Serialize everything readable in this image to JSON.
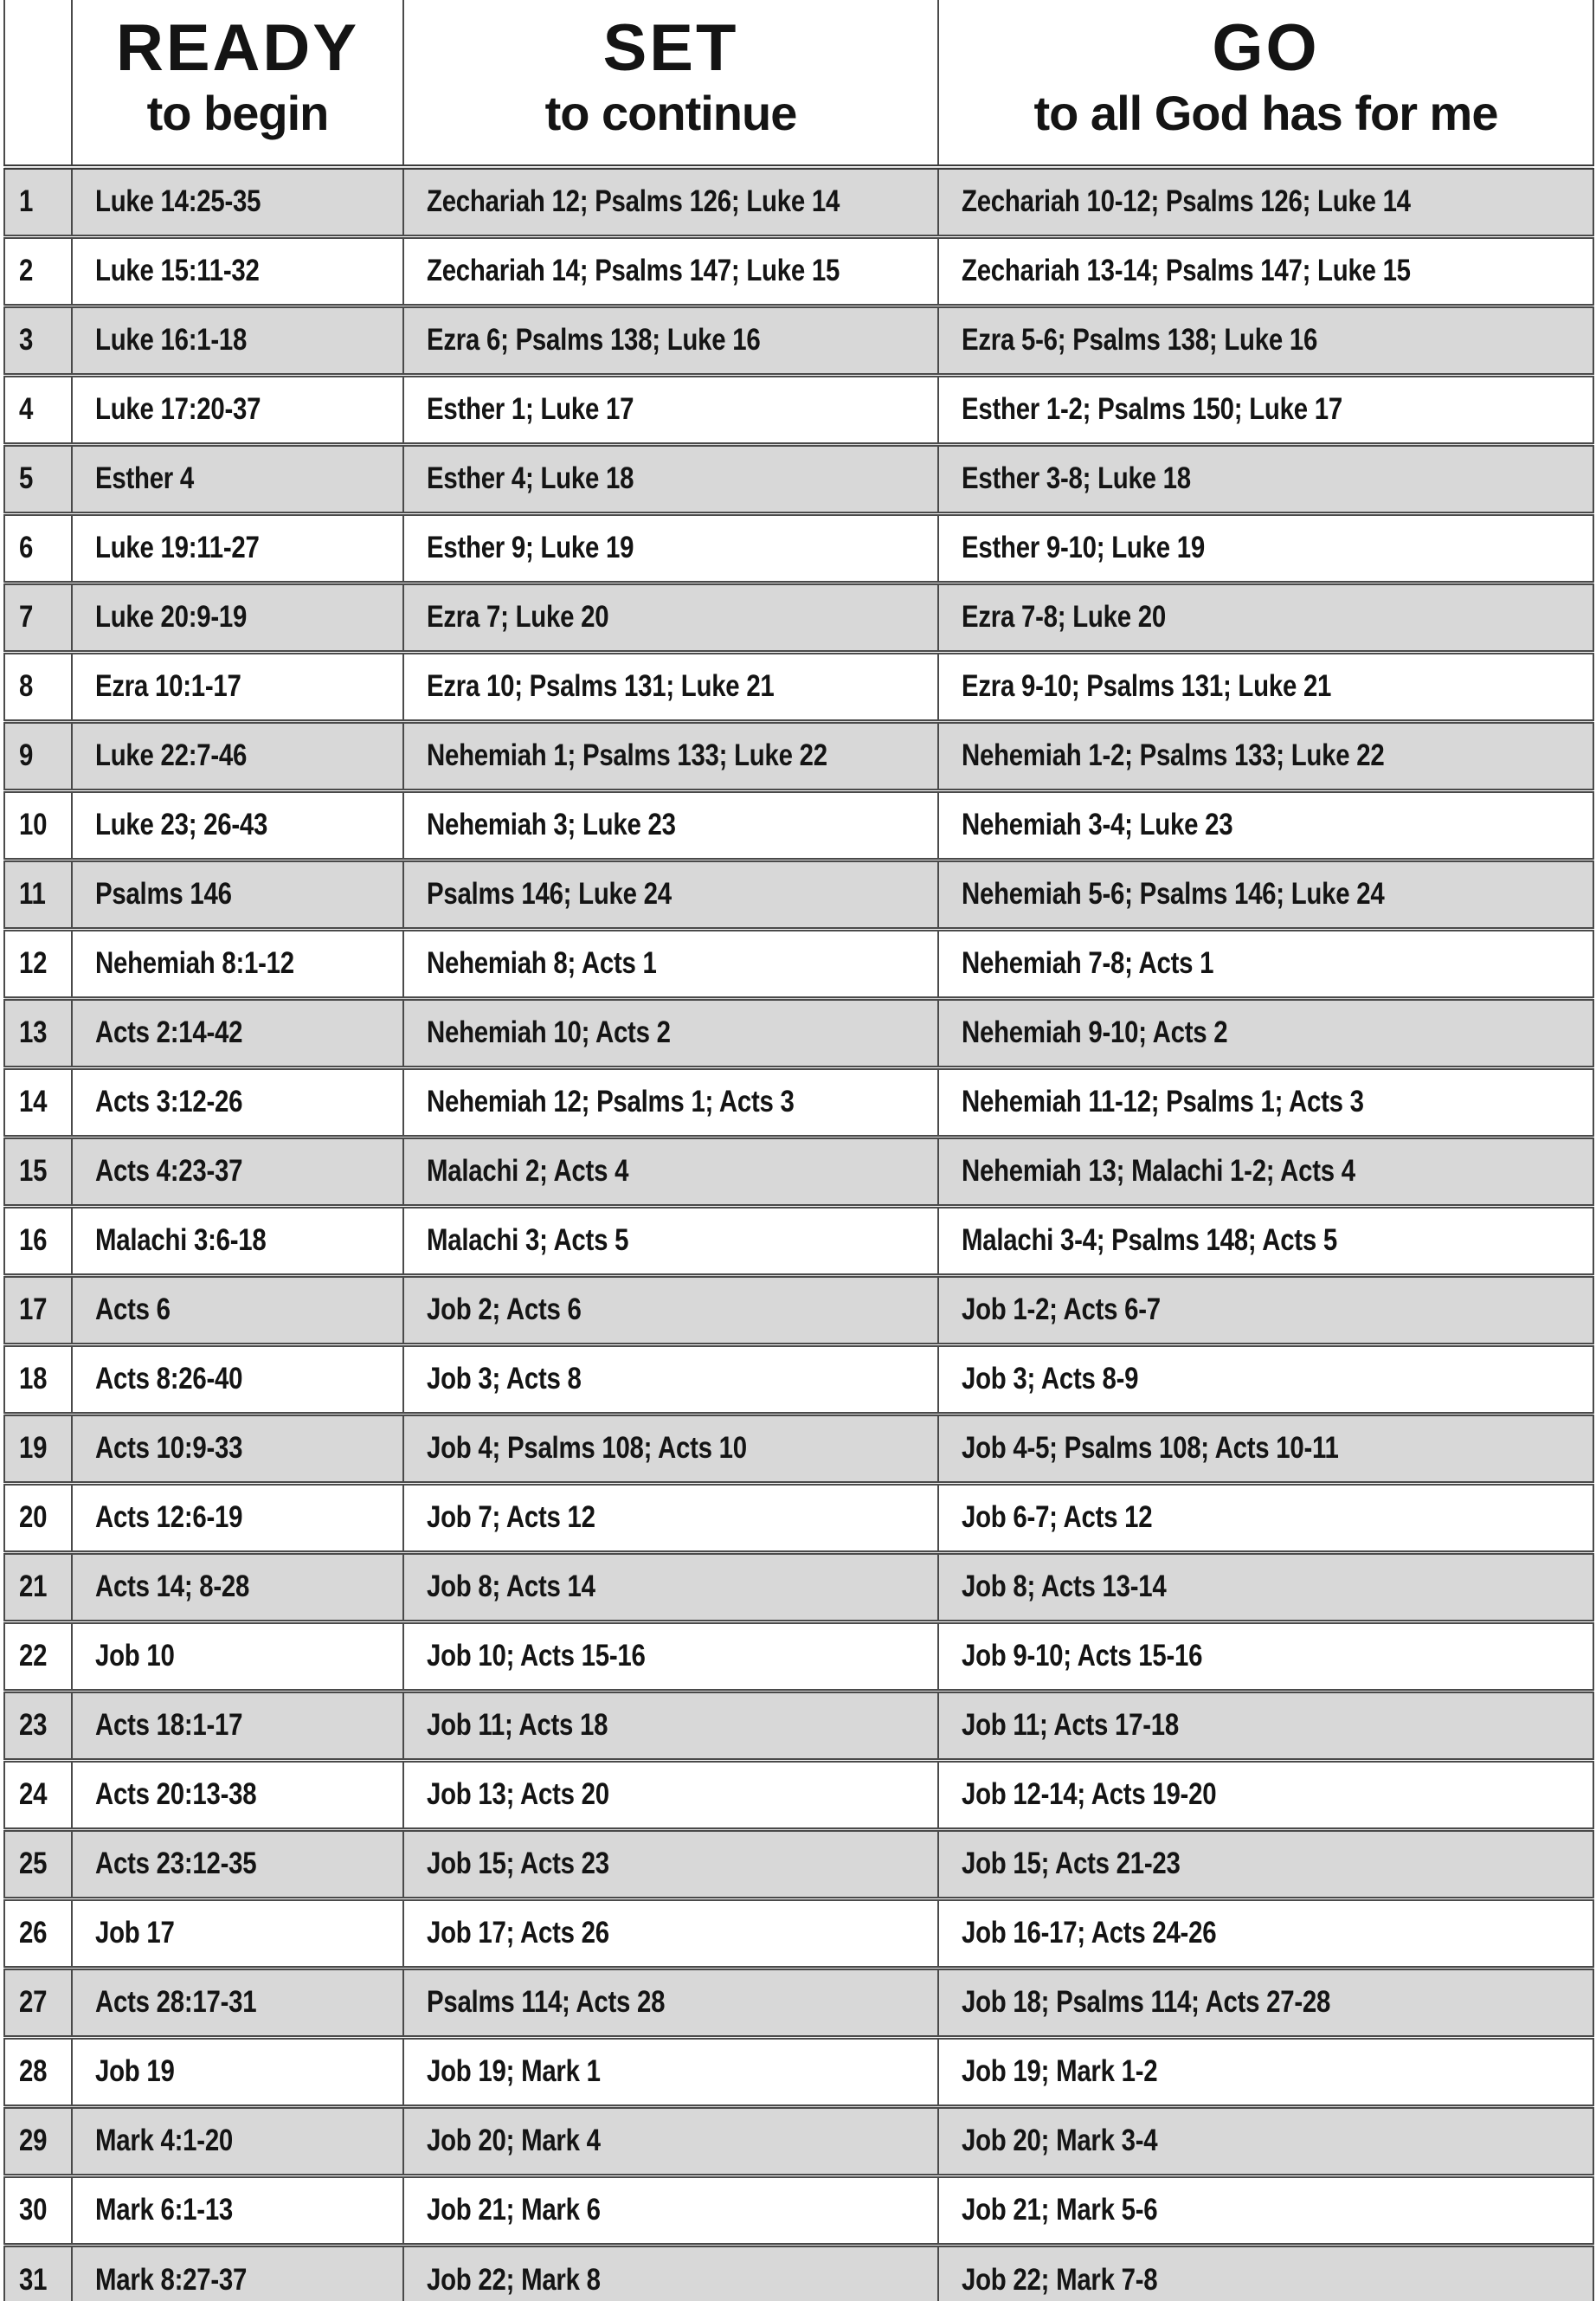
{
  "header": {
    "day_label": "",
    "columns": [
      {
        "title": "READY",
        "subtitle": "to begin"
      },
      {
        "title": "SET",
        "subtitle": "to continue"
      },
      {
        "title": "GO",
        "subtitle": "to all God has for me"
      }
    ]
  },
  "colors": {
    "row_shade": "#d8d8d8",
    "grid_line": "#4a4a4a",
    "text": "#141414"
  },
  "rows": [
    {
      "day": "1",
      "ready": "Luke 14:25-35",
      "set": "Zechariah 12; Psalms 126; Luke 14",
      "go": "Zechariah 10-12; Psalms 126; Luke 14"
    },
    {
      "day": "2",
      "ready": "Luke 15:11-32",
      "set": "Zechariah 14; Psalms 147; Luke 15",
      "go": "Zechariah 13-14; Psalms 147; Luke 15"
    },
    {
      "day": "3",
      "ready": "Luke 16:1-18",
      "set": "Ezra 6; Psalms 138; Luke 16",
      "go": "Ezra 5-6; Psalms 138; Luke 16"
    },
    {
      "day": "4",
      "ready": "Luke 17:20-37",
      "set": "Esther 1; Luke 17",
      "go": "Esther 1-2; Psalms 150; Luke 17"
    },
    {
      "day": "5",
      "ready": "Esther 4",
      "set": "Esther 4; Luke 18",
      "go": "Esther 3-8; Luke 18"
    },
    {
      "day": "6",
      "ready": "Luke 19:11-27",
      "set": "Esther 9; Luke 19",
      "go": "Esther 9-10; Luke 19"
    },
    {
      "day": "7",
      "ready": "Luke 20:9-19",
      "set": "Ezra 7; Luke 20",
      "go": "Ezra 7-8; Luke 20"
    },
    {
      "day": "8",
      "ready": "Ezra 10:1-17",
      "set": "Ezra 10; Psalms 131; Luke 21",
      "go": "Ezra 9-10; Psalms 131; Luke 21"
    },
    {
      "day": "9",
      "ready": "Luke 22:7-46",
      "set": "Nehemiah 1; Psalms 133; Luke 22",
      "go": "Nehemiah 1-2; Psalms 133; Luke 22"
    },
    {
      "day": "10",
      "ready": "Luke 23; 26-43",
      "set": "Nehemiah 3; Luke 23",
      "go": "Nehemiah 3-4; Luke 23"
    },
    {
      "day": "11",
      "ready": "Psalms 146",
      "set": "Psalms 146; Luke 24",
      "go": "Nehemiah 5-6; Psalms 146; Luke 24"
    },
    {
      "day": "12",
      "ready": "Nehemiah 8:1-12",
      "set": "Nehemiah 8; Acts 1",
      "go": "Nehemiah 7-8; Acts 1"
    },
    {
      "day": "13",
      "ready": "Acts 2:14-42",
      "set": "Nehemiah 10; Acts 2",
      "go": "Nehemiah 9-10; Acts 2"
    },
    {
      "day": "14",
      "ready": "Acts 3:12-26",
      "set": "Nehemiah 12; Psalms 1; Acts 3",
      "go": "Nehemiah 11-12; Psalms 1; Acts 3"
    },
    {
      "day": "15",
      "ready": "Acts 4:23-37",
      "set": "Malachi 2; Acts 4",
      "go": "Nehemiah 13; Malachi 1-2; Acts 4"
    },
    {
      "day": "16",
      "ready": "Malachi 3:6-18",
      "set": "Malachi 3; Acts 5",
      "go": "Malachi 3-4; Psalms 148; Acts 5"
    },
    {
      "day": "17",
      "ready": "Acts 6",
      "set": "Job 2; Acts 6",
      "go": "Job 1-2; Acts 6-7"
    },
    {
      "day": "18",
      "ready": "Acts 8:26-40",
      "set": "Job 3; Acts 8",
      "go": "Job 3; Acts 8-9"
    },
    {
      "day": "19",
      "ready": "Acts 10:9-33",
      "set": "Job 4; Psalms 108; Acts 10",
      "go": "Job 4-5; Psalms 108; Acts 10-11"
    },
    {
      "day": "20",
      "ready": "Acts 12:6-19",
      "set": "Job 7; Acts 12",
      "go": "Job 6-7; Acts 12"
    },
    {
      "day": "21",
      "ready": "Acts 14; 8-28",
      "set": "Job 8; Acts 14",
      "go": "Job 8; Acts 13-14"
    },
    {
      "day": "22",
      "ready": "Job 10",
      "set": "Job 10; Acts 15-16",
      "go": "Job 9-10; Acts 15-16"
    },
    {
      "day": "23",
      "ready": "Acts 18:1-17",
      "set": "Job 11; Acts 18",
      "go": "Job 11; Acts 17-18"
    },
    {
      "day": "24",
      "ready": "Acts 20:13-38",
      "set": "Job 13; Acts 20",
      "go": "Job 12-14; Acts 19-20"
    },
    {
      "day": "25",
      "ready": "Acts 23:12-35",
      "set": "Job 15; Acts 23",
      "go": "Job 15; Acts 21-23"
    },
    {
      "day": "26",
      "ready": "Job 17",
      "set": "Job 17; Acts 26",
      "go": "Job 16-17; Acts 24-26"
    },
    {
      "day": "27",
      "ready": "Acts 28:17-31",
      "set": "Psalms 114; Acts 28",
      "go": "Job 18; Psalms 114; Acts 27-28"
    },
    {
      "day": "28",
      "ready": "Job 19",
      "set": "Job 19; Mark 1",
      "go": "Job 19; Mark 1-2"
    },
    {
      "day": "29",
      "ready": "Mark 4:1-20",
      "set": "Job 20; Mark 4",
      "go": "Job 20; Mark 3-4"
    },
    {
      "day": "30",
      "ready": "Mark 6:1-13",
      "set": "Job 21; Mark 6",
      "go": "Job 21; Mark 5-6"
    },
    {
      "day": "31",
      "ready": "Mark 8:27-37",
      "set": "Job 22; Mark 8",
      "go": "Job 22; Mark 7-8"
    }
  ]
}
